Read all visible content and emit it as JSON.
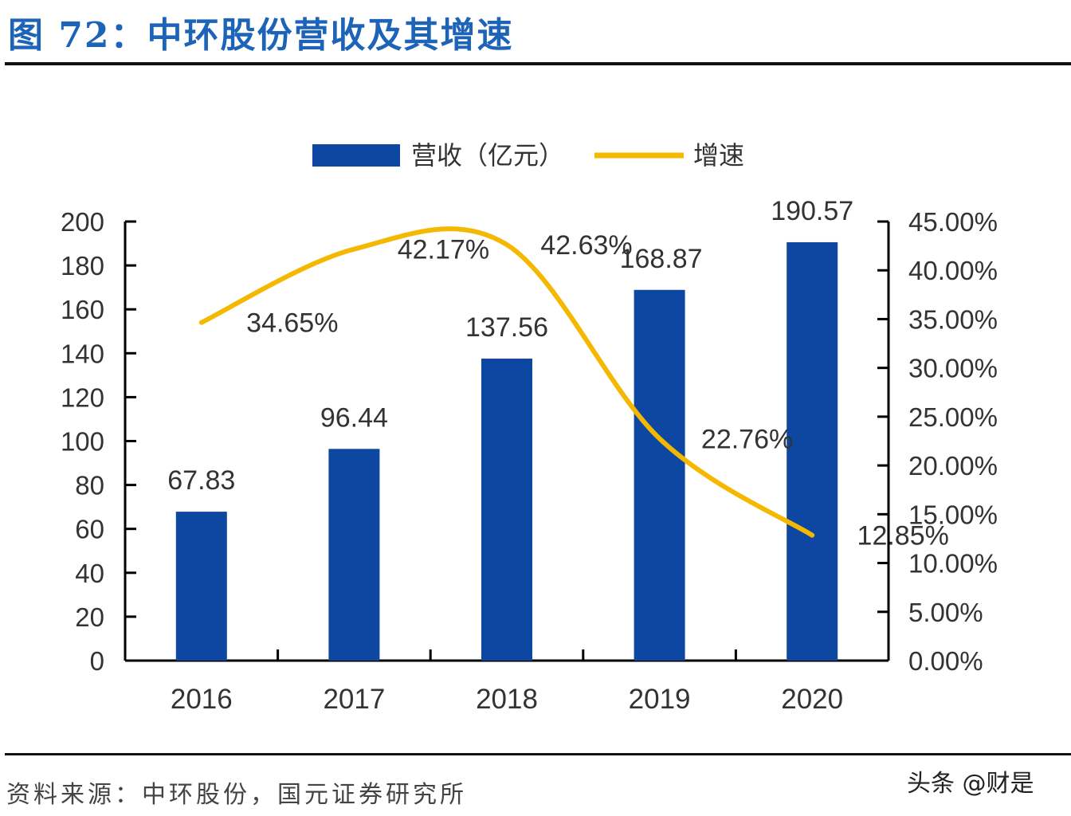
{
  "title": "图 72：中环股份营收及其增速",
  "source": "资料来源：中环股份，国元证券研究所",
  "watermark": "头条 @财是",
  "chart_data": {
    "type": "bar+line",
    "categories": [
      "2016",
      "2017",
      "2018",
      "2019",
      "2020"
    ],
    "series": [
      {
        "name": "营收（亿元）",
        "type": "bar",
        "axis": "left",
        "color": "#0e47a1",
        "values": [
          67.83,
          96.44,
          137.56,
          168.87,
          190.57
        ],
        "labels": [
          "67.83",
          "96.44",
          "137.56",
          "168.87",
          "190.57"
        ]
      },
      {
        "name": "增速",
        "type": "line",
        "axis": "right",
        "color": "#f5b800",
        "smooth": true,
        "values": [
          34.65,
          42.17,
          42.63,
          22.76,
          12.85
        ],
        "labels": [
          "34.65%",
          "42.17%",
          "42.63%",
          "22.76%",
          "12.85%"
        ]
      }
    ],
    "y_left": {
      "range": [
        0,
        200
      ],
      "ticks": [
        "0",
        "20",
        "40",
        "60",
        "80",
        "100",
        "120",
        "140",
        "160",
        "180",
        "200"
      ]
    },
    "y_right": {
      "range": [
        0,
        45
      ],
      "ticks": [
        "0.00%",
        "5.00%",
        "10.00%",
        "15.00%",
        "20.00%",
        "25.00%",
        "30.00%",
        "35.00%",
        "40.00%",
        "45.00%"
      ]
    },
    "legend": "top",
    "grid": false
  }
}
